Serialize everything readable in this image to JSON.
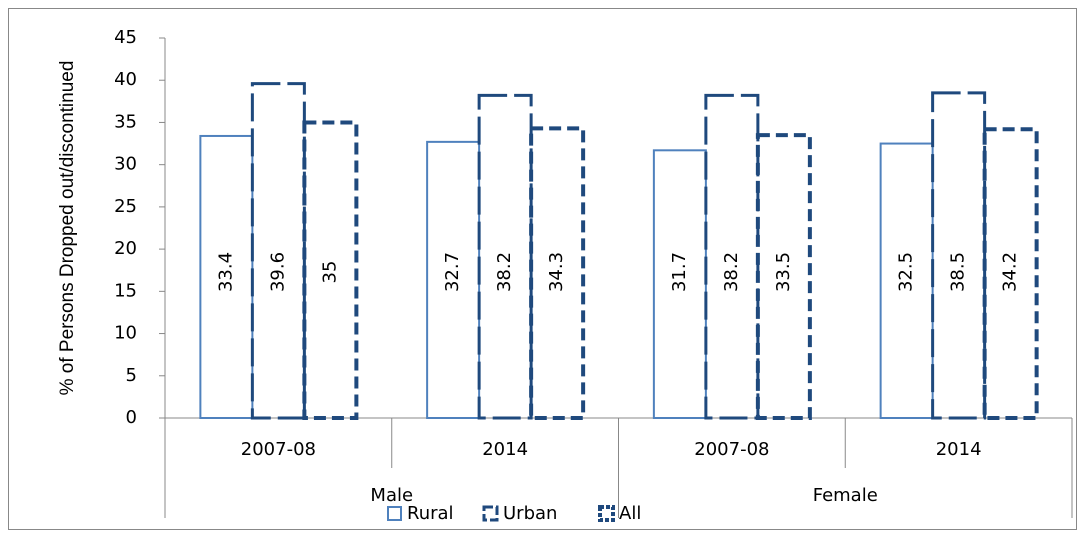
{
  "chart_data": {
    "type": "bar",
    "ylabel": "% of Persons Dropped out/discontinued",
    "categories": [
      "2007-08",
      "2014",
      "2007-08",
      "2014"
    ],
    "groups": [
      "Male",
      "Female"
    ],
    "series": [
      {
        "name": "Rural",
        "color": "#4f81bd",
        "values": [
          33.4,
          32.7,
          31.7,
          32.5
        ]
      },
      {
        "name": "Urban",
        "color": "#1f497d",
        "values": [
          39.6,
          38.2,
          38.2,
          38.5
        ]
      },
      {
        "name": "All",
        "color": "#1f497d",
        "values": [
          35,
          34.3,
          33.5,
          34.2
        ]
      }
    ],
    "ylim": [
      0,
      45
    ],
    "yticks": [
      0,
      5,
      10,
      15,
      20,
      25,
      30,
      35,
      40,
      45
    ],
    "legend": "bottom"
  }
}
